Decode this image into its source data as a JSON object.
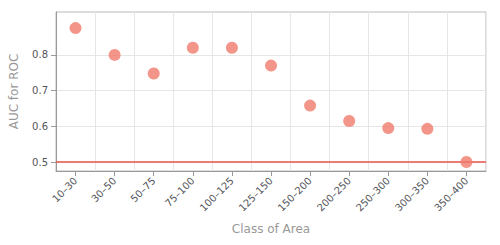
{
  "chart_data": {
    "type": "scatter",
    "xlabel": "Class of Area",
    "ylabel": "AUC for ROC",
    "categories": [
      "10–30",
      "30–50",
      "50–75",
      "75–100",
      "100–125",
      "125–150",
      "150–200",
      "200–250",
      "250–300",
      "300–350",
      "350–400"
    ],
    "values": [
      0.875,
      0.8,
      0.748,
      0.82,
      0.82,
      0.77,
      0.658,
      0.615,
      0.595,
      0.593,
      0.5
    ],
    "color": "#F07B6B",
    "reference_line": {
      "value": 0.5,
      "color": "#E8544A"
    },
    "ylim": [
      0.475,
      0.92
    ],
    "yticks": [
      0.5,
      0.6,
      0.7,
      0.8
    ],
    "grid": true
  }
}
